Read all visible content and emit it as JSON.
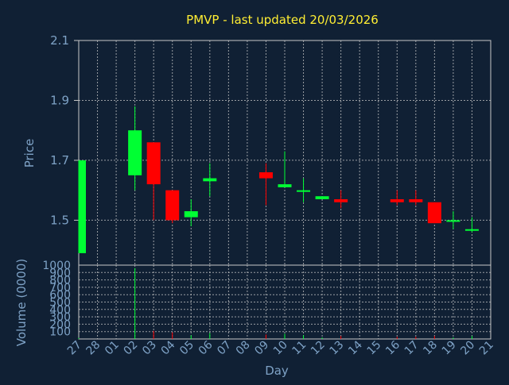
{
  "title": "PMVP - last updated 20/03/2026",
  "price_axis_label": "Price",
  "volume_axis_label": "Volume (0000)",
  "x_axis_label": "Day",
  "colors": {
    "background": "#102034",
    "title": "#ffee33",
    "axis_text": "#7ea2c6",
    "up": "#00ff33",
    "down": "#ff0000",
    "grid": "#c8c8c8"
  },
  "chart_data": [
    {
      "type": "candlestick",
      "title": "PMVP - last updated 20/03/2026",
      "ylabel": "Price",
      "xlabel": "",
      "ylim": [
        1.35,
        2.1
      ],
      "y_ticks": [
        "2.1",
        "1.9",
        "1.7",
        "1.5"
      ],
      "categories": [
        "27",
        "28",
        "01",
        "02",
        "03",
        "04",
        "05",
        "06",
        "07",
        "08",
        "09",
        "10",
        "11",
        "12",
        "13",
        "14",
        "15",
        "16",
        "17",
        "18",
        "19",
        "20",
        "21"
      ],
      "grid": true,
      "candles": [
        {
          "day": "27",
          "open": 1.39,
          "high": 1.7,
          "low": 1.39,
          "close": 1.7
        },
        {
          "day": "02",
          "open": 1.65,
          "high": 1.88,
          "low": 1.6,
          "close": 1.8
        },
        {
          "day": "03",
          "open": 1.76,
          "high": 1.76,
          "low": 1.5,
          "close": 1.62
        },
        {
          "day": "04",
          "open": 1.6,
          "high": 1.6,
          "low": 1.49,
          "close": 1.5
        },
        {
          "day": "05",
          "open": 1.51,
          "high": 1.57,
          "low": 1.48,
          "close": 1.53
        },
        {
          "day": "06",
          "open": 1.63,
          "high": 1.69,
          "low": 1.58,
          "close": 1.64
        },
        {
          "day": "09",
          "open": 1.66,
          "high": 1.69,
          "low": 1.55,
          "close": 1.64
        },
        {
          "day": "10",
          "open": 1.61,
          "high": 1.73,
          "low": 1.61,
          "close": 1.62
        },
        {
          "day": "11",
          "open": 1.6,
          "high": 1.64,
          "low": 1.56,
          "close": 1.6
        },
        {
          "day": "12",
          "open": 1.57,
          "high": 1.58,
          "low": 1.57,
          "close": 1.58
        },
        {
          "day": "13",
          "open": 1.57,
          "high": 1.6,
          "low": 1.54,
          "close": 1.56
        },
        {
          "day": "16",
          "open": 1.57,
          "high": 1.6,
          "low": 1.55,
          "close": 1.56
        },
        {
          "day": "17",
          "open": 1.57,
          "high": 1.6,
          "low": 1.55,
          "close": 1.56
        },
        {
          "day": "18",
          "open": 1.56,
          "high": 1.56,
          "low": 1.49,
          "close": 1.49
        },
        {
          "day": "19",
          "open": 1.5,
          "high": 1.53,
          "low": 1.47,
          "close": 1.5
        },
        {
          "day": "20",
          "open": 1.47,
          "high": 1.51,
          "low": 1.46,
          "close": 1.47
        }
      ]
    },
    {
      "type": "bar",
      "ylabel": "Volume (0000)",
      "xlabel": "Day",
      "ylim": [
        0,
        1000
      ],
      "y_ticks": [
        "1000",
        "900",
        "800",
        "700",
        "600",
        "500",
        "400",
        "300",
        "200",
        "100"
      ],
      "categories": [
        "27",
        "28",
        "01",
        "02",
        "03",
        "04",
        "05",
        "06",
        "07",
        "08",
        "09",
        "10",
        "11",
        "12",
        "13",
        "14",
        "15",
        "16",
        "17",
        "18",
        "19",
        "20",
        "21"
      ],
      "grid": true,
      "bars": [
        {
          "day": "27",
          "value": 15,
          "color": "up"
        },
        {
          "day": "02",
          "value": 960,
          "color": "up"
        },
        {
          "day": "03",
          "value": 110,
          "color": "down"
        },
        {
          "day": "04",
          "value": 90,
          "color": "down"
        },
        {
          "day": "05",
          "value": 50,
          "color": "up"
        },
        {
          "day": "06",
          "value": 80,
          "color": "up"
        },
        {
          "day": "09",
          "value": 60,
          "color": "down"
        },
        {
          "day": "10",
          "value": 70,
          "color": "up"
        },
        {
          "day": "11",
          "value": 50,
          "color": "up"
        },
        {
          "day": "12",
          "value": 20,
          "color": "up"
        },
        {
          "day": "13",
          "value": 40,
          "color": "down"
        },
        {
          "day": "16",
          "value": 30,
          "color": "down"
        },
        {
          "day": "17",
          "value": 30,
          "color": "down"
        },
        {
          "day": "18",
          "value": 40,
          "color": "down"
        },
        {
          "day": "19",
          "value": 20,
          "color": "up"
        },
        {
          "day": "20",
          "value": 40,
          "color": "up"
        }
      ]
    }
  ]
}
